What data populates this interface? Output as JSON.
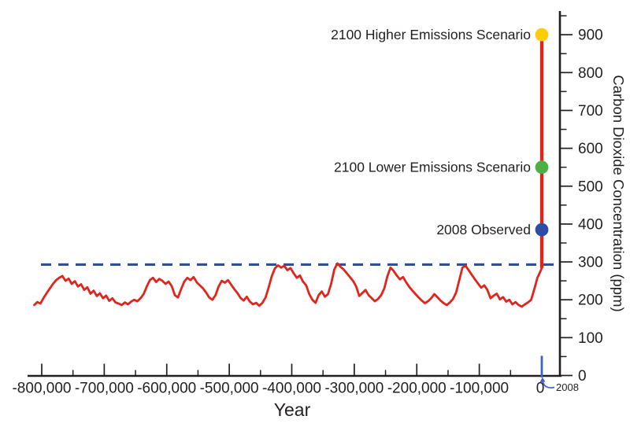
{
  "chart_data": {
    "type": "line",
    "title": "",
    "xlabel": "Year",
    "ylabel": "Carbon Dioxide Concentration (ppm)",
    "xlim": [
      -830000,
      20000
    ],
    "ylim": [
      0,
      950
    ],
    "grid": "off",
    "x_ticks": {
      "values": [
        -800000,
        -700000,
        -600000,
        -500000,
        -400000,
        -300000,
        -200000,
        -100000,
        0
      ],
      "labels": [
        "-800,000",
        "-700,000",
        "-600,000",
        "-500,000",
        "-400,000",
        "-300,000",
        "-200,000",
        "-100,000",
        "0"
      ],
      "minor_step": 50000
    },
    "y_ticks": {
      "values": [
        0,
        100,
        200,
        300,
        400,
        500,
        600,
        700,
        800,
        900
      ],
      "labels": [
        "0",
        "100",
        "200",
        "300",
        "400",
        "500",
        "600",
        "700",
        "800",
        "900"
      ],
      "minor_step": 50,
      "minor_max": 950
    },
    "series": [
      {
        "name": "ice-core-co2-history",
        "color": "#e0251c",
        "points_kyr_ppm": [
          [
            -812,
            186
          ],
          [
            -807,
            194
          ],
          [
            -802,
            190
          ],
          [
            -797,
            205
          ],
          [
            -792,
            218
          ],
          [
            -787,
            230
          ],
          [
            -782,
            242
          ],
          [
            -777,
            252
          ],
          [
            -772,
            258
          ],
          [
            -767,
            263
          ],
          [
            -762,
            250
          ],
          [
            -757,
            256
          ],
          [
            -752,
            242
          ],
          [
            -747,
            249
          ],
          [
            -742,
            235
          ],
          [
            -737,
            241
          ],
          [
            -732,
            226
          ],
          [
            -727,
            233
          ],
          [
            -722,
            216
          ],
          [
            -717,
            224
          ],
          [
            -712,
            210
          ],
          [
            -707,
            217
          ],
          [
            -702,
            204
          ],
          [
            -697,
            211
          ],
          [
            -692,
            197
          ],
          [
            -687,
            204
          ],
          [
            -682,
            193
          ],
          [
            -677,
            190
          ],
          [
            -672,
            186
          ],
          [
            -667,
            193
          ],
          [
            -662,
            188
          ],
          [
            -657,
            195
          ],
          [
            -652,
            200
          ],
          [
            -647,
            196
          ],
          [
            -642,
            204
          ],
          [
            -637,
            215
          ],
          [
            -632,
            235
          ],
          [
            -627,
            252
          ],
          [
            -622,
            258
          ],
          [
            -617,
            247
          ],
          [
            -612,
            255
          ],
          [
            -607,
            250
          ],
          [
            -602,
            242
          ],
          [
            -597,
            248
          ],
          [
            -592,
            236
          ],
          [
            -587,
            212
          ],
          [
            -582,
            206
          ],
          [
            -577,
            228
          ],
          [
            -572,
            248
          ],
          [
            -567,
            258
          ],
          [
            -562,
            252
          ],
          [
            -557,
            260
          ],
          [
            -552,
            246
          ],
          [
            -547,
            238
          ],
          [
            -542,
            230
          ],
          [
            -537,
            219
          ],
          [
            -532,
            206
          ],
          [
            -527,
            200
          ],
          [
            -522,
            212
          ],
          [
            -517,
            235
          ],
          [
            -512,
            250
          ],
          [
            -507,
            245
          ],
          [
            -502,
            252
          ],
          [
            -497,
            240
          ],
          [
            -492,
            228
          ],
          [
            -487,
            218
          ],
          [
            -482,
            205
          ],
          [
            -477,
            198
          ],
          [
            -472,
            208
          ],
          [
            -467,
            195
          ],
          [
            -462,
            188
          ],
          [
            -457,
            192
          ],
          [
            -452,
            184
          ],
          [
            -447,
            192
          ],
          [
            -442,
            206
          ],
          [
            -437,
            232
          ],
          [
            -432,
            262
          ],
          [
            -427,
            283
          ],
          [
            -422,
            291
          ],
          [
            -417,
            285
          ],
          [
            -412,
            290
          ],
          [
            -407,
            278
          ],
          [
            -402,
            284
          ],
          [
            -397,
            270
          ],
          [
            -392,
            258
          ],
          [
            -387,
            264
          ],
          [
            -382,
            248
          ],
          [
            -377,
            238
          ],
          [
            -372,
            215
          ],
          [
            -367,
            200
          ],
          [
            -362,
            192
          ],
          [
            -357,
            212
          ],
          [
            -352,
            222
          ],
          [
            -347,
            208
          ],
          [
            -342,
            215
          ],
          [
            -337,
            242
          ],
          [
            -332,
            280
          ],
          [
            -327,
            296
          ],
          [
            -322,
            287
          ],
          [
            -317,
            280
          ],
          [
            -312,
            270
          ],
          [
            -307,
            260
          ],
          [
            -302,
            250
          ],
          [
            -297,
            235
          ],
          [
            -292,
            210
          ],
          [
            -287,
            218
          ],
          [
            -282,
            226
          ],
          [
            -277,
            212
          ],
          [
            -272,
            204
          ],
          [
            -267,
            196
          ],
          [
            -262,
            202
          ],
          [
            -257,
            212
          ],
          [
            -252,
            230
          ],
          [
            -247,
            262
          ],
          [
            -242,
            285
          ],
          [
            -237,
            276
          ],
          [
            -232,
            264
          ],
          [
            -227,
            254
          ],
          [
            -222,
            260
          ],
          [
            -217,
            246
          ],
          [
            -212,
            234
          ],
          [
            -207,
            224
          ],
          [
            -202,
            215
          ],
          [
            -197,
            206
          ],
          [
            -192,
            198
          ],
          [
            -187,
            191
          ],
          [
            -182,
            196
          ],
          [
            -177,
            204
          ],
          [
            -172,
            215
          ],
          [
            -167,
            207
          ],
          [
            -162,
            198
          ],
          [
            -157,
            191
          ],
          [
            -152,
            186
          ],
          [
            -147,
            193
          ],
          [
            -142,
            202
          ],
          [
            -137,
            220
          ],
          [
            -132,
            252
          ],
          [
            -127,
            285
          ],
          [
            -122,
            290
          ],
          [
            -117,
            278
          ],
          [
            -112,
            266
          ],
          [
            -107,
            254
          ],
          [
            -102,
            243
          ],
          [
            -97,
            232
          ],
          [
            -92,
            238
          ],
          [
            -87,
            226
          ],
          [
            -82,
            204
          ],
          [
            -77,
            211
          ],
          [
            -72,
            216
          ],
          [
            -67,
            201
          ],
          [
            -62,
            207
          ],
          [
            -57,
            195
          ],
          [
            -52,
            200
          ],
          [
            -47,
            188
          ],
          [
            -42,
            194
          ],
          [
            -37,
            186
          ],
          [
            -32,
            182
          ],
          [
            -27,
            188
          ],
          [
            -22,
            193
          ],
          [
            -17,
            200
          ],
          [
            -12,
            228
          ],
          [
            -7,
            258
          ],
          [
            -3,
            272
          ],
          [
            0,
            284
          ]
        ]
      }
    ],
    "threshold_line": {
      "ppm": 293,
      "color": "#2d4ea5",
      "style": "dashed"
    },
    "projection_line": {
      "year": 0,
      "from_ppm": 284,
      "to_ppm": 903,
      "color": "#e0251c"
    },
    "markers": [
      {
        "id": "higher",
        "label": "2100 Higher Emissions Scenario",
        "year": 0,
        "ppm": 900,
        "color": "#ffcc05"
      },
      {
        "id": "lower",
        "label": "2100 Lower Emissions Scenario",
        "year": 0,
        "ppm": 550,
        "color": "#4db043"
      },
      {
        "id": "observed",
        "label": "2008 Observed",
        "year": 0,
        "ppm": 385,
        "color": "#2d4ea5"
      }
    ],
    "x_annotation": {
      "label": "2008",
      "year": 0,
      "color": "#3f62c1"
    }
  },
  "colors": {
    "axis": "#231f20",
    "history_red": "#e0251c",
    "threshold_blue": "#2d4ea5",
    "annotation_blue": "#3f62c1",
    "background": "#ffffff"
  }
}
